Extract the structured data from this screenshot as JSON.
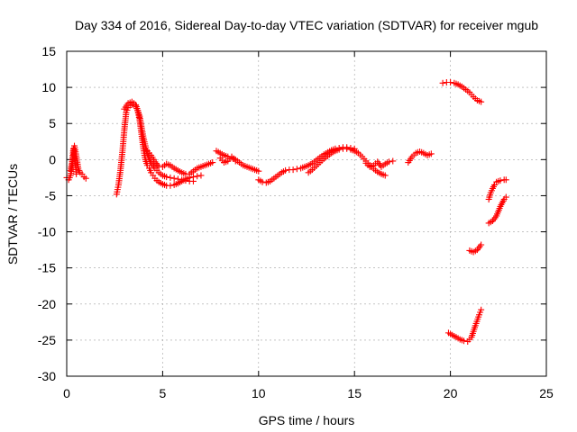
{
  "chart_data": {
    "type": "scatter",
    "title": "Day 334 of 2016, Sidereal Day-to-day VTEC variation (SDTVAR) for receiver mgub",
    "xlabel": "GPS time / hours",
    "ylabel": "SDTVAR / TECUs",
    "xlim": [
      0,
      25
    ],
    "ylim": [
      -30,
      15
    ],
    "xticks": [
      "0",
      "5",
      "10",
      "15",
      "20",
      "25"
    ],
    "yticks": [
      "15",
      "10",
      "5",
      "0",
      "-5",
      "-10",
      "-15",
      "-20",
      "-25",
      "-30"
    ],
    "xtick_values": [
      0,
      5,
      10,
      15,
      20,
      25
    ],
    "ytick_values": [
      15,
      10,
      5,
      0,
      -5,
      -10,
      -15,
      -20,
      -25,
      -30
    ],
    "grid": true,
    "marker": "+",
    "color": "#ff0000",
    "series": [
      {
        "name": "seg1",
        "x": [
          0.0,
          0.1,
          0.2,
          0.3,
          0.4,
          0.5,
          0.6,
          0.7,
          0.8,
          0.9,
          1.0
        ],
        "y": [
          -2.5,
          -2.8,
          -2.2,
          -0.8,
          1.9,
          0.5,
          -1.2,
          -1.8,
          -2.0,
          -2.4,
          -2.6
        ]
      },
      {
        "name": "seg2",
        "x": [
          0.2,
          0.3,
          0.35,
          0.4,
          0.45,
          0.5
        ],
        "y": [
          -1.5,
          0.0,
          1.5,
          0.8,
          -0.5,
          -2.0
        ]
      },
      {
        "name": "seg3",
        "x": [
          2.6,
          2.7,
          2.8,
          2.9,
          3.0,
          3.1,
          3.2,
          3.3,
          3.4,
          3.5,
          3.6,
          3.7,
          3.8,
          3.9,
          4.0,
          4.1,
          4.2,
          4.3,
          4.4,
          4.5,
          4.6,
          4.7,
          4.8,
          5.0,
          5.2,
          5.4,
          5.6,
          5.8,
          6.0,
          6.2,
          6.4,
          6.6,
          6.8,
          7.0
        ],
        "y": [
          -4.8,
          -3.5,
          -1.5,
          1.0,
          4.0,
          6.5,
          7.2,
          7.5,
          7.6,
          7.6,
          7.4,
          6.8,
          5.5,
          3.5,
          1.5,
          0.0,
          -0.8,
          -1.2,
          -1.8,
          -2.2,
          -2.6,
          -2.9,
          -3.1,
          -3.4,
          -3.6,
          -3.6,
          -3.5,
          -3.3,
          -3.0,
          -2.7,
          -2.5,
          -2.4,
          -2.3,
          -2.2
        ]
      },
      {
        "name": "seg4",
        "x": [
          3.0,
          3.2,
          3.4,
          3.6,
          3.8,
          4.0,
          4.2,
          4.4,
          4.6,
          4.8,
          5.0,
          5.2,
          5.4,
          5.6,
          5.8,
          6.0,
          6.2,
          6.4,
          6.6
        ],
        "y": [
          7.0,
          7.8,
          8.0,
          7.6,
          6.0,
          3.0,
          0.8,
          -0.5,
          -1.2,
          -1.8,
          -2.2,
          -2.4,
          -2.5,
          -2.6,
          -2.7,
          -2.8,
          -2.9,
          -3.0,
          -3.0
        ]
      },
      {
        "name": "seg5",
        "x": [
          4.2,
          4.4,
          4.6,
          4.8,
          5.0,
          5.2,
          5.4,
          5.6,
          5.8,
          6.0,
          6.2,
          6.4,
          6.6,
          6.8,
          7.0,
          7.2,
          7.4,
          7.6
        ],
        "y": [
          1.2,
          0.6,
          -0.3,
          -1.0,
          -1.0,
          -0.6,
          -0.8,
          -1.2,
          -1.5,
          -1.8,
          -2.0,
          -2.0,
          -1.6,
          -1.2,
          -1.0,
          -0.8,
          -0.6,
          -0.4
        ]
      },
      {
        "name": "seg6",
        "x": [
          7.8,
          8.0,
          8.2,
          8.4,
          8.6,
          8.8,
          9.0,
          9.2,
          9.4,
          9.6,
          9.8,
          10.0
        ],
        "y": [
          1.2,
          0.9,
          0.6,
          0.4,
          0.3,
          0.0,
          -0.4,
          -0.8,
          -1.0,
          -1.2,
          -1.4,
          -1.6
        ]
      },
      {
        "name": "seg7",
        "x": [
          8.0,
          8.2,
          8.4,
          8.6,
          8.8
        ],
        "y": [
          0.2,
          -0.4,
          -0.2,
          0.4,
          -0.2
        ]
      },
      {
        "name": "seg8",
        "x": [
          10.0,
          10.2,
          10.4,
          10.6,
          10.8,
          11.0,
          11.2,
          11.4,
          11.6,
          11.8,
          12.0,
          12.2,
          12.4,
          12.6,
          12.8,
          13.0,
          13.2,
          13.4,
          13.6,
          13.8,
          14.0,
          14.2,
          14.4,
          14.6,
          14.8,
          15.0
        ],
        "y": [
          -2.8,
          -3.1,
          -3.2,
          -3.0,
          -2.6,
          -2.2,
          -1.8,
          -1.5,
          -1.4,
          -1.4,
          -1.3,
          -1.2,
          -1.0,
          -0.8,
          -0.5,
          -0.1,
          0.3,
          0.7,
          1.0,
          1.3,
          1.5,
          1.6,
          1.7,
          1.7,
          1.6,
          1.5
        ]
      },
      {
        "name": "seg9",
        "x": [
          12.6,
          12.8,
          13.0,
          13.2,
          13.4,
          13.6,
          13.8,
          14.0,
          14.2,
          14.4,
          14.6,
          14.8,
          15.0,
          15.2,
          15.4,
          15.6,
          15.8,
          16.0,
          16.2,
          16.4,
          16.6
        ],
        "y": [
          -1.8,
          -1.4,
          -0.9,
          -0.4,
          0.1,
          0.5,
          0.9,
          1.2,
          1.4,
          1.5,
          1.5,
          1.4,
          1.2,
          0.9,
          0.4,
          -0.2,
          -0.8,
          -1.3,
          -1.7,
          -2.0,
          -2.2
        ]
      },
      {
        "name": "seg10",
        "x": [
          15.6,
          15.8,
          16.0,
          16.2,
          16.4,
          16.6,
          16.8,
          17.0
        ],
        "y": [
          -0.5,
          -1.0,
          -0.8,
          -0.3,
          -1.0,
          -0.6,
          -0.3,
          -0.2
        ]
      },
      {
        "name": "seg11",
        "x": [
          17.8,
          18.0,
          18.2,
          18.4,
          18.6,
          18.8,
          19.0
        ],
        "y": [
          -0.4,
          0.4,
          0.9,
          1.1,
          0.9,
          0.6,
          0.8
        ]
      },
      {
        "name": "seg12",
        "x": [
          19.6,
          19.8,
          20.0,
          20.2,
          20.4,
          20.6,
          20.8,
          21.0,
          21.2,
          21.4,
          21.6
        ],
        "y": [
          10.6,
          10.7,
          10.7,
          10.6,
          10.4,
          10.1,
          9.7,
          9.3,
          8.7,
          8.2,
          8.0
        ]
      },
      {
        "name": "seg13",
        "x": [
          19.9,
          20.1,
          20.3,
          20.5,
          20.7,
          20.9,
          21.1,
          21.3,
          21.5,
          21.6
        ],
        "y": [
          -24.0,
          -24.3,
          -24.6,
          -24.9,
          -25.1,
          -25.2,
          -24.6,
          -23.0,
          -21.5,
          -20.8
        ]
      },
      {
        "name": "seg14",
        "x": [
          21.0,
          21.2,
          21.4,
          21.6
        ],
        "y": [
          -12.6,
          -12.8,
          -12.5,
          -11.8
        ]
      },
      {
        "name": "seg15",
        "x": [
          22.0,
          22.2,
          22.4,
          22.6,
          22.8,
          22.9
        ],
        "y": [
          -8.8,
          -8.5,
          -7.8,
          -6.5,
          -5.5,
          -5.2
        ]
      },
      {
        "name": "seg16",
        "x": [
          22.0,
          22.1,
          22.2,
          22.3,
          22.4,
          22.6,
          22.8,
          22.9
        ],
        "y": [
          -5.5,
          -4.6,
          -4.0,
          -3.5,
          -3.1,
          -2.9,
          -2.8,
          -2.8
        ]
      }
    ]
  }
}
